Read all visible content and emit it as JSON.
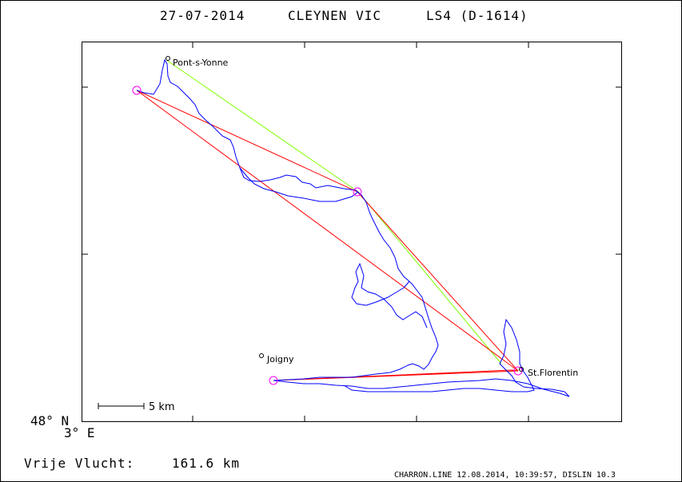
{
  "header": {
    "date": "27-07-2014",
    "pilot": "CLEYNEN VIC",
    "glider": "LS4 (D-1614)"
  },
  "places": [
    {
      "name": "Pont-s-Yonne"
    },
    {
      "name": "Joigny"
    },
    {
      "name": "St.Florentin"
    }
  ],
  "axis": {
    "lat_label": "48° N",
    "lon_label": "3° E"
  },
  "scale": {
    "label": "5 km"
  },
  "distance": {
    "label": "Vrije Vlucht:",
    "value": "161.6 km"
  },
  "footer": {
    "text": "CHARRON.LINE 12.08.2014, 10:39:57, DISLIN 10.3"
  },
  "colors": {
    "track": "#0000ff",
    "task": "#ff0000",
    "optimal": "#80ff00",
    "turnpoint": "#ff00ff",
    "frame": "#000000"
  }
}
